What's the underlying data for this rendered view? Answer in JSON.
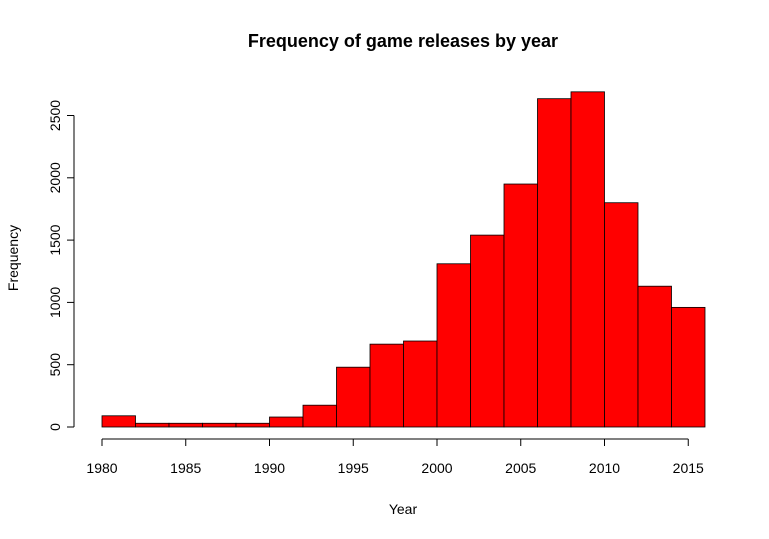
{
  "chart_data": {
    "type": "bar",
    "title": "Frequency of game releases by year",
    "xlabel": "Year",
    "ylabel": "Frequency",
    "xlim": [
      1980,
      2016
    ],
    "ylim": [
      0,
      2700
    ],
    "bin_width": 2,
    "bins": [
      {
        "start": 1980,
        "end": 1982,
        "count": 90
      },
      {
        "start": 1982,
        "end": 1984,
        "count": 30
      },
      {
        "start": 1984,
        "end": 1986,
        "count": 30
      },
      {
        "start": 1986,
        "end": 1988,
        "count": 30
      },
      {
        "start": 1988,
        "end": 1990,
        "count": 30
      },
      {
        "start": 1990,
        "end": 1992,
        "count": 80
      },
      {
        "start": 1992,
        "end": 1994,
        "count": 175
      },
      {
        "start": 1994,
        "end": 1996,
        "count": 480
      },
      {
        "start": 1996,
        "end": 1998,
        "count": 665
      },
      {
        "start": 1998,
        "end": 2000,
        "count": 690
      },
      {
        "start": 2000,
        "end": 2002,
        "count": 1310
      },
      {
        "start": 2002,
        "end": 2004,
        "count": 1540
      },
      {
        "start": 2004,
        "end": 2006,
        "count": 1950
      },
      {
        "start": 2006,
        "end": 2008,
        "count": 2635
      },
      {
        "start": 2008,
        "end": 2010,
        "count": 2690
      },
      {
        "start": 2010,
        "end": 2012,
        "count": 1800
      },
      {
        "start": 2012,
        "end": 2014,
        "count": 1130
      },
      {
        "start": 2014,
        "end": 2016,
        "count": 960
      }
    ],
    "x_ticks": [
      1980,
      1985,
      1990,
      1995,
      2000,
      2005,
      2010,
      2015
    ],
    "y_ticks": [
      0,
      500,
      1000,
      1500,
      2000,
      2500
    ],
    "bar_color": "#ff0000",
    "bar_border_color": "#000000"
  }
}
